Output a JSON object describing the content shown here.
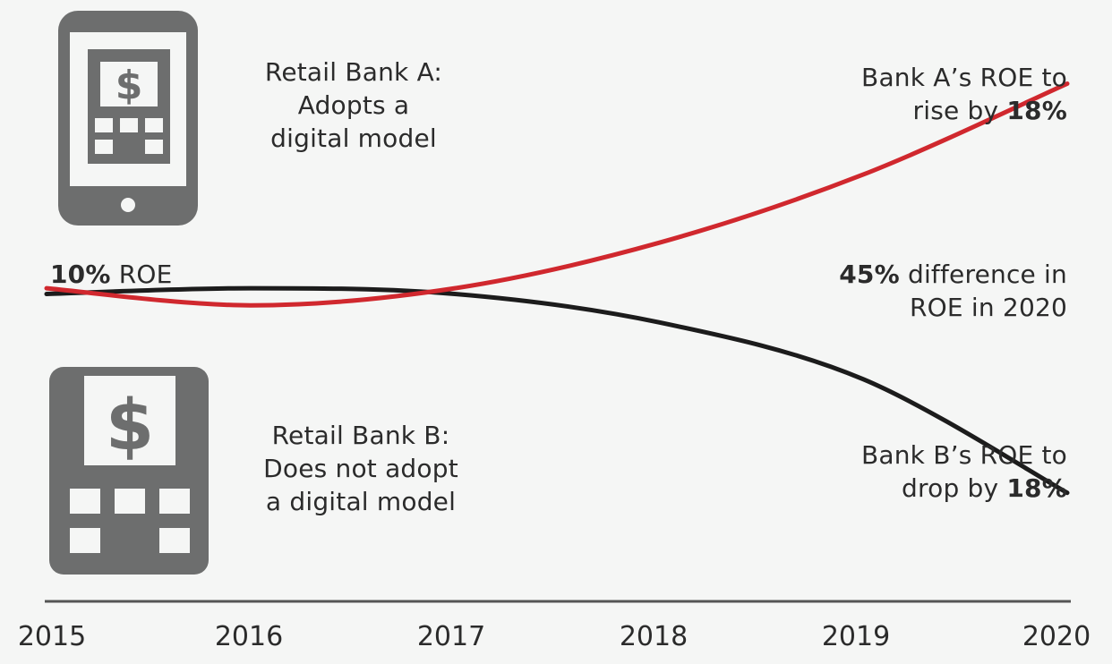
{
  "chart_data": {
    "type": "line",
    "x": [
      2015,
      2016,
      2017,
      2018,
      2019,
      2020
    ],
    "xlim": [
      2015,
      2020
    ],
    "ylim": [
      7.3,
      12.3
    ],
    "series": [
      {
        "values": [
          10.0,
          9.85,
          10.0,
          10.4,
          11.0,
          11.8
        ],
        "color": "#d0282e"
      },
      {
        "values": [
          9.95,
          10.0,
          9.95,
          9.7,
          9.2,
          8.2
        ],
        "color": "#1c1c1c"
      }
    ],
    "axis_color": "#555555",
    "icon_color": "#6d6e6e",
    "xticks": [
      "2015",
      "2016",
      "2017",
      "2018",
      "2019",
      "2020"
    ]
  },
  "labels": {
    "start": {
      "bold": "10%",
      "rest": " ROE"
    },
    "bank_a": {
      "line1": "Retail Bank A:",
      "line2": "Adopts a",
      "line3": "digital model"
    },
    "bank_b": {
      "line1": "Retail Bank B:",
      "line2": "Does not adopt",
      "line3": "a digital model"
    },
    "rise": {
      "line1": "Bank A’s ROE to",
      "line2_pre": "rise by ",
      "line2_bold": "18%"
    },
    "drop": {
      "line1": "Bank B’s ROE to",
      "line2_pre": "drop by ",
      "line2_bold": "18%"
    },
    "diff": {
      "line1_bold": "45%",
      "line1_rest": " difference in",
      "line2": "ROE in 2020"
    }
  },
  "icons": {
    "phone": "phone-bank-icon",
    "building": "bank-building-icon",
    "currency_symbol": "$"
  }
}
